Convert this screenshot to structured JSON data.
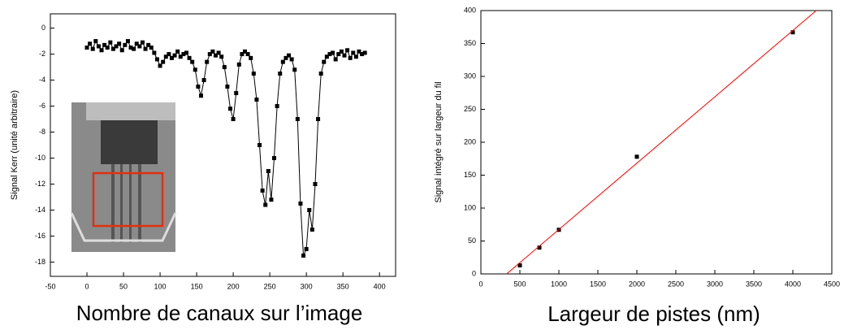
{
  "chart_data": [
    {
      "type": "line",
      "x_label": "Nombre de canaux sur l’image",
      "y_label": "Signal Kerr (unité arbitraire)",
      "xlim": [
        -50,
        422
      ],
      "ylim": [
        -19.1,
        1.1
      ],
      "xticks": [
        -50,
        0,
        50,
        100,
        150,
        200,
        250,
        300,
        350,
        400
      ],
      "yticks": [
        0,
        -2,
        -4,
        -6,
        -8,
        -10,
        -12,
        -14,
        -16,
        -18
      ],
      "series": [
        {
          "color": "#000000",
          "mode": "lines+markers",
          "x": [
            0,
            4,
            8,
            12,
            16,
            20,
            24,
            28,
            32,
            36,
            40,
            44,
            48,
            52,
            56,
            60,
            64,
            68,
            72,
            76,
            80,
            84,
            88,
            92,
            96,
            100,
            104,
            108,
            112,
            116,
            120,
            124,
            128,
            132,
            136,
            140,
            144,
            148,
            152,
            156,
            160,
            164,
            168,
            172,
            176,
            180,
            184,
            188,
            192,
            196,
            200,
            204,
            208,
            212,
            216,
            220,
            224,
            228,
            232,
            236,
            240,
            244,
            248,
            252,
            256,
            260,
            264,
            268,
            272,
            276,
            280,
            284,
            288,
            292,
            296,
            300,
            304,
            308,
            312,
            316,
            320,
            324,
            328,
            332,
            336,
            340,
            344,
            348,
            352,
            356,
            360,
            364,
            368,
            372,
            376,
            380
          ],
          "values": [
            -1.5,
            -1.2,
            -1.6,
            -1.0,
            -1.4,
            -1.7,
            -1.3,
            -1.5,
            -1.1,
            -1.6,
            -1.4,
            -1.2,
            -1.7,
            -1.3,
            -1.0,
            -1.5,
            -1.6,
            -1.2,
            -1.4,
            -1.1,
            -1.6,
            -1.3,
            -1.5,
            -1.9,
            -2.4,
            -2.9,
            -2.6,
            -2.2,
            -2.0,
            -2.3,
            -2.1,
            -1.8,
            -2.2,
            -2.0,
            -1.9,
            -2.3,
            -2.6,
            -3.2,
            -4.5,
            -5.2,
            -4.0,
            -2.6,
            -2.0,
            -1.8,
            -2.1,
            -1.9,
            -2.2,
            -3.0,
            -4.5,
            -6.2,
            -7.0,
            -5.0,
            -2.8,
            -2.0,
            -1.8,
            -2.0,
            -2.3,
            -3.5,
            -5.5,
            -9.0,
            -12.5,
            -13.6,
            -11.0,
            -13.2,
            -10.0,
            -6.0,
            -3.5,
            -2.6,
            -2.3,
            -2.1,
            -2.4,
            -3.2,
            -7.0,
            -13.5,
            -17.5,
            -17.0,
            -14.0,
            -15.5,
            -12.0,
            -7.0,
            -3.5,
            -2.6,
            -2.2,
            -2.0,
            -1.9,
            -2.4,
            -2.0,
            -1.8,
            -2.1,
            -1.7,
            -2.3,
            -1.9,
            -2.2,
            -1.8,
            -2.0,
            -1.9
          ]
        }
      ]
    },
    {
      "type": "scatter",
      "x_label": "Largeur de pistes (nm)",
      "y_label": "Signal intégré sur largeur du fil",
      "xlim": [
        0,
        4500
      ],
      "ylim": [
        0,
        400
      ],
      "xticks": [
        0,
        500,
        1000,
        1500,
        2000,
        2500,
        3000,
        3500,
        4000,
        4500
      ],
      "yticks": [
        0,
        50,
        100,
        150,
        200,
        250,
        300,
        350,
        400
      ],
      "series": [
        {
          "color": "#000000",
          "mode": "markers",
          "x": [
            500,
            750,
            1000,
            2000,
            4000
          ],
          "values": [
            13,
            40,
            67,
            178,
            367
          ]
        },
        {
          "color": "#ff0000",
          "mode": "lines",
          "x": [
            330,
            4300
          ],
          "values": [
            0,
            400
          ]
        }
      ]
    }
  ]
}
